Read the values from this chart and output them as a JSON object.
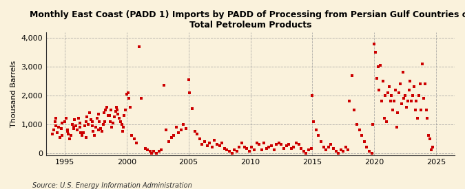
{
  "title": "Monthly East Coast (PADD 1) Imports by PADD of Processing from Persian Gulf Countries of\nTotal Petroleum Products",
  "ylabel": "Thousand Barrels",
  "source": "Source: U.S. Energy Information Administration",
  "bg_color": "#FAF2DC",
  "dot_color": "#CC0000",
  "xlim": [
    1993.5,
    2026.5
  ],
  "ylim": [
    -80,
    4200
  ],
  "yticks": [
    0,
    1000,
    2000,
    3000,
    4000
  ],
  "ytick_labels": [
    "0",
    "1,000",
    "2,000",
    "3,000",
    "4,000"
  ],
  "xticks": [
    1995,
    2000,
    2005,
    2010,
    2015,
    2020,
    2025
  ],
  "data": [
    [
      1994.25,
      1200
    ],
    [
      1994.5,
      900
    ],
    [
      1994.75,
      600
    ],
    [
      1995.0,
      1100
    ],
    [
      1995.25,
      750
    ],
    [
      1995.5,
      600
    ],
    [
      1995.75,
      900
    ],
    [
      1996.0,
      800
    ],
    [
      1996.25,
      1050
    ],
    [
      1996.5,
      700
    ],
    [
      1996.75,
      550
    ],
    [
      1997.0,
      1400
    ],
    [
      1997.25,
      1100
    ],
    [
      1997.5,
      900
    ],
    [
      1997.75,
      800
    ],
    [
      1998.0,
      750
    ],
    [
      1998.25,
      1100
    ],
    [
      1998.5,
      1300
    ],
    [
      1998.75,
      1500
    ],
    [
      1999.0,
      1250
    ],
    [
      1999.25,
      1500
    ],
    [
      1999.5,
      1100
    ],
    [
      1999.75,
      900
    ],
    [
      1994.0,
      650
    ],
    [
      1994.1,
      800
    ],
    [
      1994.2,
      1100
    ],
    [
      1994.3,
      950
    ],
    [
      1994.4,
      700
    ],
    [
      1994.6,
      550
    ],
    [
      1994.7,
      850
    ],
    [
      1994.8,
      1050
    ],
    [
      1995.1,
      1200
    ],
    [
      1995.2,
      800
    ],
    [
      1995.3,
      650
    ],
    [
      1995.4,
      500
    ],
    [
      1995.6,
      1000
    ],
    [
      1995.7,
      850
    ],
    [
      1995.8,
      1150
    ],
    [
      1995.9,
      950
    ],
    [
      1996.1,
      1200
    ],
    [
      1996.2,
      900
    ],
    [
      1996.3,
      700
    ],
    [
      1996.4,
      600
    ],
    [
      1996.6,
      950
    ],
    [
      1996.7,
      1100
    ],
    [
      1996.8,
      1250
    ],
    [
      1996.9,
      1000
    ],
    [
      1997.1,
      1150
    ],
    [
      1997.2,
      950
    ],
    [
      1997.3,
      750
    ],
    [
      1997.4,
      600
    ],
    [
      1997.6,
      1200
    ],
    [
      1997.7,
      1350
    ],
    [
      1997.8,
      1100
    ],
    [
      1997.9,
      850
    ],
    [
      1998.1,
      1000
    ],
    [
      1998.2,
      1400
    ],
    [
      1998.3,
      1500
    ],
    [
      1998.4,
      1600
    ],
    [
      1998.6,
      1300
    ],
    [
      1998.7,
      1100
    ],
    [
      1998.8,
      900
    ],
    [
      1998.9,
      1050
    ],
    [
      1999.1,
      1450
    ],
    [
      1999.2,
      1600
    ],
    [
      1999.3,
      1350
    ],
    [
      1999.4,
      1200
    ],
    [
      1999.6,
      1000
    ],
    [
      1999.7,
      750
    ],
    [
      1999.8,
      1300
    ],
    [
      1999.9,
      1500
    ],
    [
      2000.0,
      2050
    ],
    [
      2000.1,
      2100
    ],
    [
      2000.2,
      1900
    ],
    [
      2000.3,
      1600
    ],
    [
      2000.4,
      600
    ],
    [
      2000.6,
      500
    ],
    [
      2000.8,
      350
    ],
    [
      2001.0,
      3700
    ],
    [
      2001.2,
      1900
    ],
    [
      2001.5,
      150
    ],
    [
      2001.7,
      100
    ],
    [
      2001.9,
      50
    ],
    [
      2002.0,
      0
    ],
    [
      2002.2,
      50
    ],
    [
      2002.4,
      0
    ],
    [
      2002.6,
      50
    ],
    [
      2002.8,
      100
    ],
    [
      2003.0,
      2350
    ],
    [
      2003.2,
      800
    ],
    [
      2003.4,
      400
    ],
    [
      2003.6,
      550
    ],
    [
      2003.8,
      600
    ],
    [
      2004.0,
      900
    ],
    [
      2004.2,
      700
    ],
    [
      2004.4,
      800
    ],
    [
      2004.6,
      1000
    ],
    [
      2004.8,
      850
    ],
    [
      2005.0,
      2550
    ],
    [
      2005.1,
      2100
    ],
    [
      2005.3,
      1550
    ],
    [
      2005.5,
      750
    ],
    [
      2005.7,
      650
    ],
    [
      2005.9,
      500
    ],
    [
      2006.1,
      300
    ],
    [
      2006.3,
      400
    ],
    [
      2006.5,
      250
    ],
    [
      2006.7,
      350
    ],
    [
      2006.9,
      200
    ],
    [
      2007.1,
      450
    ],
    [
      2007.3,
      300
    ],
    [
      2007.5,
      250
    ],
    [
      2007.7,
      350
    ],
    [
      2007.9,
      150
    ],
    [
      2008.1,
      100
    ],
    [
      2008.3,
      50
    ],
    [
      2008.5,
      0
    ],
    [
      2008.7,
      100
    ],
    [
      2008.9,
      50
    ],
    [
      2009.1,
      200
    ],
    [
      2009.3,
      350
    ],
    [
      2009.5,
      200
    ],
    [
      2009.7,
      150
    ],
    [
      2009.9,
      50
    ],
    [
      2010.1,
      200
    ],
    [
      2010.3,
      100
    ],
    [
      2010.5,
      350
    ],
    [
      2010.7,
      300
    ],
    [
      2010.9,
      100
    ],
    [
      2011.1,
      350
    ],
    [
      2011.3,
      150
    ],
    [
      2011.5,
      200
    ],
    [
      2011.7,
      250
    ],
    [
      2011.9,
      100
    ],
    [
      2012.1,
      300
    ],
    [
      2012.3,
      350
    ],
    [
      2012.5,
      300
    ],
    [
      2012.7,
      150
    ],
    [
      2012.9,
      250
    ],
    [
      2013.1,
      300
    ],
    [
      2013.3,
      150
    ],
    [
      2013.5,
      200
    ],
    [
      2013.7,
      350
    ],
    [
      2013.9,
      300
    ],
    [
      2014.1,
      150
    ],
    [
      2014.3,
      50
    ],
    [
      2014.5,
      0
    ],
    [
      2014.7,
      100
    ],
    [
      2014.9,
      150
    ],
    [
      2015.0,
      2000
    ],
    [
      2015.1,
      1100
    ],
    [
      2015.3,
      800
    ],
    [
      2015.5,
      600
    ],
    [
      2015.7,
      400
    ],
    [
      2015.9,
      200
    ],
    [
      2016.1,
      100
    ],
    [
      2016.3,
      200
    ],
    [
      2016.5,
      300
    ],
    [
      2016.7,
      150
    ],
    [
      2016.9,
      50
    ],
    [
      2017.1,
      0
    ],
    [
      2017.3,
      100
    ],
    [
      2017.5,
      50
    ],
    [
      2017.7,
      200
    ],
    [
      2017.9,
      100
    ],
    [
      2018.0,
      1800
    ],
    [
      2018.2,
      2700
    ],
    [
      2018.4,
      1500
    ],
    [
      2018.6,
      1000
    ],
    [
      2018.8,
      800
    ],
    [
      2019.0,
      600
    ],
    [
      2019.2,
      400
    ],
    [
      2019.4,
      200
    ],
    [
      2019.6,
      50
    ],
    [
      2019.8,
      0
    ],
    [
      2019.9,
      1000
    ],
    [
      2020.0,
      3800
    ],
    [
      2020.1,
      3500
    ],
    [
      2020.2,
      2600
    ],
    [
      2020.3,
      3000
    ],
    [
      2020.4,
      2200
    ],
    [
      2020.5,
      3050
    ],
    [
      2020.6,
      1800
    ],
    [
      2020.7,
      2500
    ],
    [
      2020.8,
      1200
    ],
    [
      2020.9,
      2000
    ],
    [
      2021.0,
      1100
    ],
    [
      2021.1,
      2100
    ],
    [
      2021.2,
      2300
    ],
    [
      2021.3,
      1800
    ],
    [
      2021.4,
      2000
    ],
    [
      2021.5,
      1500
    ],
    [
      2021.6,
      1800
    ],
    [
      2021.7,
      2200
    ],
    [
      2021.8,
      900
    ],
    [
      2021.9,
      1400
    ],
    [
      2022.0,
      2100
    ],
    [
      2022.1,
      2400
    ],
    [
      2022.2,
      1700
    ],
    [
      2022.3,
      2800
    ],
    [
      2022.4,
      1900
    ],
    [
      2022.5,
      2000
    ],
    [
      2022.6,
      1600
    ],
    [
      2022.7,
      1800
    ],
    [
      2022.8,
      2200
    ],
    [
      2022.9,
      2500
    ],
    [
      2023.0,
      1800
    ],
    [
      2023.1,
      2000
    ],
    [
      2023.2,
      2300
    ],
    [
      2023.3,
      1500
    ],
    [
      2023.4,
      1800
    ],
    [
      2023.5,
      1200
    ],
    [
      2023.6,
      2000
    ],
    [
      2023.7,
      2400
    ],
    [
      2023.8,
      1500
    ],
    [
      2023.9,
      3100
    ],
    [
      2024.0,
      1900
    ],
    [
      2024.1,
      2400
    ],
    [
      2024.2,
      1500
    ],
    [
      2024.3,
      1200
    ],
    [
      2024.4,
      600
    ],
    [
      2024.5,
      500
    ],
    [
      2024.6,
      100
    ],
    [
      2024.7,
      200
    ]
  ]
}
